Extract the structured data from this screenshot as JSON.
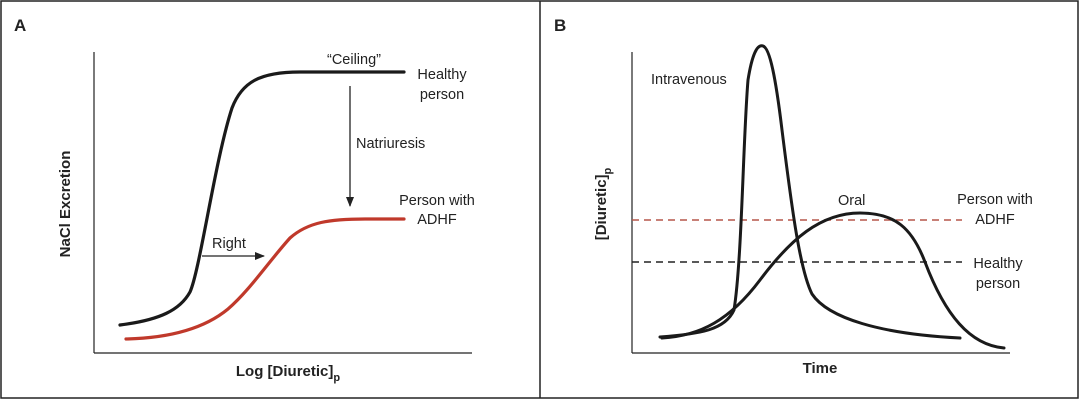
{
  "figure": {
    "panel_a": {
      "letter": "A",
      "ylabel": "NaCl Excretion",
      "xlabel_main": "Log [Diuretic]",
      "xlabel_sub": "p",
      "ceiling_label": "“Ceiling”",
      "natriuresis_label": "Natriuresis",
      "right_label": "Right",
      "healthy_line1": "Healthy",
      "healthy_line2": "person",
      "adhf_line1": "Person with",
      "adhf_line2": "ADHF"
    },
    "panel_b": {
      "letter": "B",
      "ylabel_main": "[Diuretic]",
      "ylabel_sub": "p",
      "xlabel": "Time",
      "iv_label": "Intravenous",
      "oral_label": "Oral",
      "adhf_line1": "Person with",
      "adhf_line2": "ADHF",
      "healthy_line1": "Healthy",
      "healthy_line2": "person"
    }
  },
  "colors": {
    "border": "#222222",
    "curve": "#1a1a1a",
    "adhf_curve": "#c0392b",
    "adhf_threshold": "#b5574a",
    "healthy_threshold": "#222222"
  }
}
